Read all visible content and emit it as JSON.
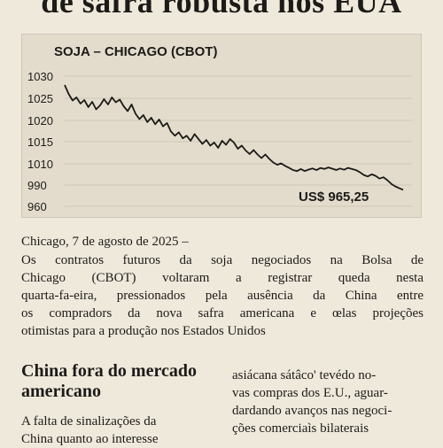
{
  "article": {
    "headline": "de safra robusta nos EUA",
    "dateline": "Chicago, 7 de agosto de 2025 –",
    "lead_lines": [
      "Os contratos futuros da soja negociados na Bolsa de",
      "Chicago (CBOT) voltaram a registrar queda nesta",
      "quarta-fa-eira, pressionados pela ausência da China entre",
      "os compradors da nova safra americana e œlas projeções",
      "otimistas para a produção nos Estados Unidos"
    ],
    "subhead": "China fora do mercado americano",
    "left_column_lines": [
      "A falta de sinalizações da",
      "China quanto ao interesse"
    ],
    "right_column_lines": [
      "asiácana sátâco' tevédo no-",
      "vas compras dos E.U., aguar-",
      "dardando avanços nas negoci-",
      "ções comerciaìs bilaterais"
    ]
  },
  "chart_data": {
    "type": "line",
    "title": "SOJA – CHICAGO (CBOT)",
    "y_ticks": [
      "1030",
      "1025",
      "1020",
      "1015",
      "1010",
      "990",
      "960"
    ],
    "annotation": "US$ 965,25",
    "values": [
      1028,
      1026,
      1024.5,
      1025.2,
      1023.8,
      1024.6,
      1023,
      1024.2,
      1022.5,
      1023.4,
      1024.8,
      1023.6,
      1025.2,
      1024.1,
      1024.7,
      1023.2,
      1022.1,
      1023.6,
      1021.5,
      1020.3,
      1021.2,
      1019.6,
      1020.6,
      1019.1,
      1020.2,
      1018.6,
      1019.4,
      1017.4,
      1016.4,
      1017.2,
      1015.8,
      1016.4,
      1015.2,
      1016.8,
      1015.6,
      1014.5,
      1015.4,
      1014.1,
      1014.8,
      1013.6,
      1015.2,
      1014.3,
      1015.6,
      1014.8,
      1013.4,
      1014.1,
      1013,
      1012.2,
      1013.1,
      1012.1,
      1011.3,
      1012.1,
      1011.1,
      1010.3,
      1009.1,
      1010.1,
      1008.1,
      1006.2,
      1004.2,
      1003.1,
      1005.1,
      1003.2,
      1004.6,
      1005.6,
      1004.1,
      1006.1,
      1005.2,
      1006.6,
      1005.4,
      1004.2,
      1005.6,
      1004.4,
      1006.2,
      1005.1,
      1004.1,
      1002.1,
      999.5,
      998.1,
      1000.1,
      998.7,
      996.1,
      997.3,
      994.6,
      991.1,
      988.1,
      985.5,
      983.2
    ],
    "grid": true,
    "colors": {
      "line": "#1c1a17",
      "grid": "#c9c0ae",
      "background": "#e3dccd"
    }
  }
}
